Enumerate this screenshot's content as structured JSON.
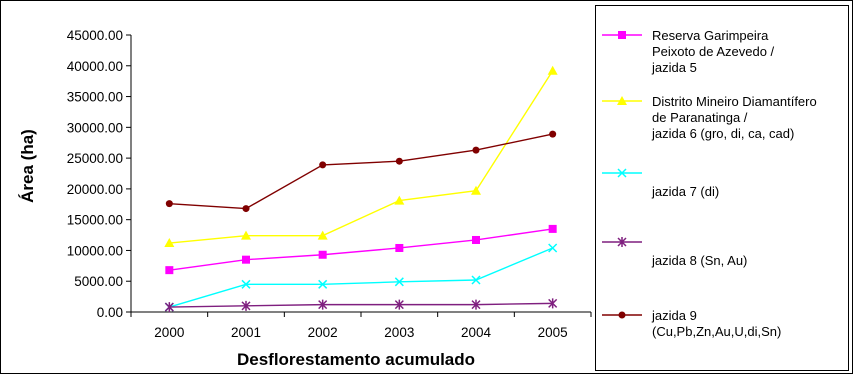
{
  "chart_data": {
    "type": "line",
    "title": "",
    "xlabel": "Desflorestamento acumulado",
    "ylabel": "Área (ha)",
    "categories": [
      "2000",
      "2001",
      "2002",
      "2003",
      "2004",
      "2005"
    ],
    "ylim": [
      0,
      45000
    ],
    "yticks": [
      "0.00",
      "5000.00",
      "10000.00",
      "15000.00",
      "20000.00",
      "25000.00",
      "30000.00",
      "35000.00",
      "40000.00",
      "45000.00"
    ],
    "ytick_values": [
      0,
      5000,
      10000,
      15000,
      20000,
      25000,
      30000,
      35000,
      40000,
      45000
    ],
    "grid": false,
    "legend_position": "right",
    "series": [
      {
        "name": "Reserva Garimpeira\nPeixoto de Azevedo /\njazida 5",
        "color": "#ff00ff",
        "marker": "square",
        "values": [
          6800,
          8500,
          9300,
          10400,
          11700,
          13500
        ]
      },
      {
        "name": "Distrito Mineiro Diamantífero\nde Paranatinga /\njazida 6 (gro, di, ca, cad)",
        "color": "#ffff00",
        "marker": "triangle",
        "values": [
          11200,
          12400,
          12400,
          18100,
          19700,
          39200
        ]
      },
      {
        "name": "jazida 7 (di)",
        "color": "#00ffff",
        "marker": "x",
        "values": [
          800,
          4500,
          4500,
          4900,
          5200,
          10400
        ]
      },
      {
        "name": "jazida 8 (Sn, Au)",
        "color": "#7f1f7f",
        "marker": "star",
        "values": [
          800,
          1000,
          1200,
          1200,
          1200,
          1400
        ]
      },
      {
        "name": "jazida 9\n(Cu,Pb,Zn,Au,U,di,Sn)",
        "color": "#800000",
        "marker": "circle",
        "values": [
          17600,
          16800,
          23900,
          24500,
          26300,
          28900
        ]
      }
    ]
  }
}
